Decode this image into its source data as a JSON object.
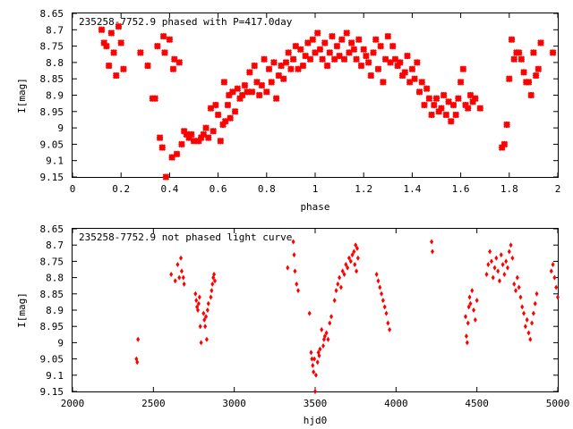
{
  "colors": {
    "points": "#ff0000",
    "axes": "#000000",
    "background": "#ffffff"
  },
  "chart_data": [
    {
      "type": "scatter",
      "title": "235258-7752.9 phased with P=417.0day",
      "xlabel": "phase",
      "ylabel": "I[mag]",
      "xlim": [
        0,
        2
      ],
      "ylim": [
        8.65,
        9.15
      ],
      "y_inverted": true,
      "grid": false,
      "marker": "star",
      "xticks": [
        "0",
        "0.2",
        "0.4",
        "0.6",
        "0.8",
        "1",
        "1.2",
        "1.4",
        "1.6",
        "1.8",
        "2"
      ],
      "yticks": [
        "8.65",
        "8.7",
        "8.75",
        "8.8",
        "8.85",
        "8.9",
        "8.95",
        "9",
        "9.05",
        "9.1",
        "9.15"
      ],
      "points": [
        [
          0.12,
          8.7
        ],
        [
          0.13,
          8.74
        ],
        [
          0.14,
          8.75
        ],
        [
          0.15,
          8.81
        ],
        [
          0.16,
          8.71
        ],
        [
          0.17,
          8.77
        ],
        [
          0.18,
          8.84
        ],
        [
          0.19,
          8.69
        ],
        [
          0.2,
          8.74
        ],
        [
          0.21,
          8.82
        ],
        [
          0.28,
          8.77
        ],
        [
          0.31,
          8.81
        ],
        [
          0.33,
          8.91
        ],
        [
          0.34,
          8.91
        ],
        [
          0.35,
          8.75
        ],
        [
          0.36,
          9.03
        ],
        [
          0.37,
          9.06
        ],
        [
          0.375,
          8.72
        ],
        [
          0.38,
          8.77
        ],
        [
          0.385,
          9.15
        ],
        [
          0.4,
          8.73
        ],
        [
          0.41,
          9.09
        ],
        [
          0.415,
          8.82
        ],
        [
          0.42,
          8.79
        ],
        [
          0.43,
          9.08
        ],
        [
          0.44,
          8.8
        ],
        [
          0.45,
          9.05
        ],
        [
          0.46,
          9.01
        ],
        [
          0.47,
          9.02
        ],
        [
          0.48,
          9.03
        ],
        [
          0.49,
          9.02
        ],
        [
          0.5,
          9.04
        ],
        [
          0.52,
          9.04
        ],
        [
          0.53,
          9.03
        ],
        [
          0.54,
          9.02
        ],
        [
          0.55,
          9.0
        ],
        [
          0.56,
          9.03
        ],
        [
          0.57,
          8.94
        ],
        [
          0.58,
          9.01
        ],
        [
          0.59,
          8.93
        ],
        [
          0.6,
          8.96
        ],
        [
          0.61,
          9.04
        ],
        [
          0.62,
          8.99
        ],
        [
          0.625,
          8.86
        ],
        [
          0.63,
          8.98
        ],
        [
          0.64,
          8.93
        ],
        [
          0.645,
          8.9
        ],
        [
          0.65,
          8.97
        ],
        [
          0.66,
          8.89
        ],
        [
          0.67,
          8.95
        ],
        [
          0.68,
          8.88
        ],
        [
          0.69,
          8.91
        ],
        [
          0.7,
          8.9
        ],
        [
          0.71,
          8.87
        ],
        [
          0.72,
          8.89
        ],
        [
          0.73,
          8.83
        ],
        [
          0.74,
          8.89
        ],
        [
          0.75,
          8.81
        ],
        [
          0.76,
          8.86
        ],
        [
          0.77,
          8.9
        ],
        [
          0.78,
          8.87
        ],
        [
          0.79,
          8.79
        ],
        [
          0.8,
          8.89
        ],
        [
          0.81,
          8.82
        ],
        [
          0.82,
          8.86
        ],
        [
          0.83,
          8.8
        ],
        [
          0.84,
          8.91
        ],
        [
          0.85,
          8.84
        ],
        [
          0.86,
          8.81
        ],
        [
          0.87,
          8.85
        ],
        [
          0.88,
          8.8
        ],
        [
          0.89,
          8.77
        ],
        [
          0.9,
          8.82
        ],
        [
          0.91,
          8.79
        ],
        [
          0.92,
          8.75
        ],
        [
          0.93,
          8.82
        ],
        [
          0.94,
          8.76
        ],
        [
          0.95,
          8.81
        ],
        [
          0.96,
          8.78
        ],
        [
          0.97,
          8.74
        ],
        [
          0.98,
          8.79
        ],
        [
          0.99,
          8.73
        ],
        [
          1.0,
          8.77
        ],
        [
          1.01,
          8.71
        ],
        [
          1.02,
          8.76
        ],
        [
          1.03,
          8.79
        ],
        [
          1.04,
          8.74
        ],
        [
          1.05,
          8.81
        ],
        [
          1.06,
          8.77
        ],
        [
          1.07,
          8.72
        ],
        [
          1.08,
          8.79
        ],
        [
          1.09,
          8.75
        ],
        [
          1.1,
          8.78
        ],
        [
          1.11,
          8.73
        ],
        [
          1.12,
          8.79
        ],
        [
          1.13,
          8.71
        ],
        [
          1.14,
          8.77
        ],
        [
          1.15,
          8.74
        ],
        [
          1.16,
          8.76
        ],
        [
          1.17,
          8.79
        ],
        [
          1.18,
          8.73
        ],
        [
          1.19,
          8.81
        ],
        [
          1.2,
          8.76
        ],
        [
          1.21,
          8.78
        ],
        [
          1.22,
          8.8
        ],
        [
          1.23,
          8.84
        ],
        [
          1.24,
          8.77
        ],
        [
          1.25,
          8.73
        ],
        [
          1.26,
          8.82
        ],
        [
          1.27,
          8.75
        ],
        [
          1.28,
          8.86
        ],
        [
          1.29,
          8.79
        ],
        [
          1.3,
          8.72
        ],
        [
          1.31,
          8.8
        ],
        [
          1.32,
          8.75
        ],
        [
          1.33,
          8.79
        ],
        [
          1.34,
          8.81
        ],
        [
          1.35,
          8.8
        ],
        [
          1.36,
          8.84
        ],
        [
          1.37,
          8.83
        ],
        [
          1.38,
          8.78
        ],
        [
          1.39,
          8.86
        ],
        [
          1.4,
          8.82
        ],
        [
          1.41,
          8.85
        ],
        [
          1.42,
          8.8
        ],
        [
          1.43,
          8.89
        ],
        [
          1.44,
          8.86
        ],
        [
          1.45,
          8.93
        ],
        [
          1.46,
          8.88
        ],
        [
          1.47,
          8.91
        ],
        [
          1.48,
          8.96
        ],
        [
          1.49,
          8.93
        ],
        [
          1.5,
          8.91
        ],
        [
          1.51,
          8.95
        ],
        [
          1.52,
          8.94
        ],
        [
          1.53,
          8.9
        ],
        [
          1.54,
          8.96
        ],
        [
          1.55,
          8.92
        ],
        [
          1.56,
          8.98
        ],
        [
          1.57,
          8.93
        ],
        [
          1.58,
          8.96
        ],
        [
          1.59,
          8.91
        ],
        [
          1.6,
          8.86
        ],
        [
          1.61,
          8.82
        ],
        [
          1.62,
          8.93
        ],
        [
          1.63,
          8.94
        ],
        [
          1.64,
          8.9
        ],
        [
          1.65,
          8.92
        ],
        [
          1.66,
          8.91
        ],
        [
          1.68,
          8.94
        ],
        [
          1.77,
          9.06
        ],
        [
          1.78,
          9.05
        ],
        [
          1.79,
          8.99
        ],
        [
          1.8,
          8.85
        ],
        [
          1.81,
          8.73
        ],
        [
          1.82,
          8.79
        ],
        [
          1.83,
          8.77
        ],
        [
          1.84,
          8.77
        ],
        [
          1.85,
          8.79
        ],
        [
          1.86,
          8.83
        ],
        [
          1.87,
          8.86
        ],
        [
          1.88,
          8.86
        ],
        [
          1.89,
          8.9
        ],
        [
          1.9,
          8.77
        ],
        [
          1.91,
          8.84
        ],
        [
          1.92,
          8.82
        ],
        [
          1.93,
          8.74
        ],
        [
          1.98,
          8.77
        ]
      ]
    },
    {
      "type": "scatter",
      "title": "235258-7752.9 not phased light curve",
      "xlabel": "hjd0",
      "ylabel": "I[mag]",
      "xlim": [
        2000,
        5000
      ],
      "ylim": [
        8.65,
        9.15
      ],
      "y_inverted": true,
      "grid": false,
      "marker": "diamond",
      "xticks": [
        "2000",
        "2500",
        "3000",
        "3500",
        "4000",
        "4500",
        "5000"
      ],
      "yticks": [
        "8.65",
        "8.7",
        "8.75",
        "8.8",
        "8.85",
        "8.9",
        "8.95",
        "9",
        "9.05",
        "9.1",
        "9.15"
      ],
      "points": [
        [
          2395,
          9.05
        ],
        [
          2400,
          9.06
        ],
        [
          2405,
          8.99
        ],
        [
          2610,
          8.79
        ],
        [
          2635,
          8.81
        ],
        [
          2650,
          8.76
        ],
        [
          2660,
          8.8
        ],
        [
          2670,
          8.74
        ],
        [
          2675,
          8.78
        ],
        [
          2685,
          8.8
        ],
        [
          2690,
          8.82
        ],
        [
          2760,
          8.85
        ],
        [
          2765,
          8.87
        ],
        [
          2770,
          8.89
        ],
        [
          2775,
          8.9
        ],
        [
          2780,
          8.88
        ],
        [
          2785,
          8.86
        ],
        [
          2790,
          8.95
        ],
        [
          2795,
          9.0
        ],
        [
          2810,
          8.91
        ],
        [
          2815,
          8.93
        ],
        [
          2820,
          8.95
        ],
        [
          2825,
          8.92
        ],
        [
          2830,
          8.99
        ],
        [
          2835,
          8.9
        ],
        [
          2840,
          8.88
        ],
        [
          2855,
          8.86
        ],
        [
          2860,
          8.84
        ],
        [
          2865,
          8.82
        ],
        [
          2870,
          8.8
        ],
        [
          2875,
          8.79
        ],
        [
          2880,
          8.81
        ],
        [
          3330,
          8.77
        ],
        [
          3365,
          8.69
        ],
        [
          3370,
          8.73
        ],
        [
          3375,
          8.78
        ],
        [
          3385,
          8.82
        ],
        [
          3395,
          8.84
        ],
        [
          3465,
          8.91
        ],
        [
          3475,
          9.03
        ],
        [
          3480,
          9.05
        ],
        [
          3485,
          9.07
        ],
        [
          3490,
          9.09
        ],
        [
          3495,
          9.05
        ],
        [
          3500,
          9.15
        ],
        [
          3505,
          9.1
        ],
        [
          3515,
          9.06
        ],
        [
          3520,
          9.03
        ],
        [
          3525,
          9.04
        ],
        [
          3530,
          9.02
        ],
        [
          3540,
          8.96
        ],
        [
          3550,
          9.01
        ],
        [
          3555,
          8.99
        ],
        [
          3560,
          8.98
        ],
        [
          3570,
          8.97
        ],
        [
          3580,
          8.99
        ],
        [
          3590,
          8.94
        ],
        [
          3600,
          8.92
        ],
        [
          3620,
          8.87
        ],
        [
          3630,
          8.84
        ],
        [
          3640,
          8.82
        ],
        [
          3650,
          8.8
        ],
        [
          3660,
          8.83
        ],
        [
          3670,
          8.78
        ],
        [
          3680,
          8.79
        ],
        [
          3690,
          8.76
        ],
        [
          3700,
          8.77
        ],
        [
          3710,
          8.74
        ],
        [
          3720,
          8.75
        ],
        [
          3730,
          8.73
        ],
        [
          3740,
          8.72
        ],
        [
          3745,
          8.76
        ],
        [
          3750,
          8.7
        ],
        [
          3755,
          8.78
        ],
        [
          3760,
          8.71
        ],
        [
          3765,
          8.74
        ],
        [
          3880,
          8.79
        ],
        [
          3890,
          8.81
        ],
        [
          3900,
          8.83
        ],
        [
          3910,
          8.85
        ],
        [
          3920,
          8.87
        ],
        [
          3930,
          8.89
        ],
        [
          3940,
          8.91
        ],
        [
          3950,
          8.94
        ],
        [
          3960,
          8.96
        ],
        [
          4220,
          8.69
        ],
        [
          4225,
          8.72
        ],
        [
          4430,
          8.92
        ],
        [
          4435,
          8.98
        ],
        [
          4440,
          9.0
        ],
        [
          4445,
          8.94
        ],
        [
          4450,
          8.89
        ],
        [
          4455,
          8.86
        ],
        [
          4460,
          8.88
        ],
        [
          4470,
          8.84
        ],
        [
          4480,
          8.9
        ],
        [
          4490,
          8.93
        ],
        [
          4500,
          8.87
        ],
        [
          4560,
          8.79
        ],
        [
          4570,
          8.76
        ],
        [
          4580,
          8.72
        ],
        [
          4590,
          8.75
        ],
        [
          4600,
          8.8
        ],
        [
          4610,
          8.77
        ],
        [
          4620,
          8.74
        ],
        [
          4630,
          8.78
        ],
        [
          4640,
          8.81
        ],
        [
          4650,
          8.73
        ],
        [
          4660,
          8.76
        ],
        [
          4670,
          8.79
        ],
        [
          4680,
          8.75
        ],
        [
          4690,
          8.77
        ],
        [
          4700,
          8.72
        ],
        [
          4710,
          8.7
        ],
        [
          4720,
          8.74
        ],
        [
          4730,
          8.82
        ],
        [
          4740,
          8.84
        ],
        [
          4750,
          8.8
        ],
        [
          4760,
          8.83
        ],
        [
          4770,
          8.86
        ],
        [
          4780,
          8.89
        ],
        [
          4790,
          8.91
        ],
        [
          4800,
          8.95
        ],
        [
          4810,
          8.93
        ],
        [
          4820,
          8.97
        ],
        [
          4830,
          8.99
        ],
        [
          4840,
          8.94
        ],
        [
          4850,
          8.91
        ],
        [
          4860,
          8.88
        ],
        [
          4870,
          8.85
        ],
        [
          4960,
          8.78
        ],
        [
          4970,
          8.76
        ],
        [
          4980,
          8.8
        ],
        [
          4990,
          8.83
        ],
        [
          5000,
          8.86
        ]
      ]
    }
  ]
}
